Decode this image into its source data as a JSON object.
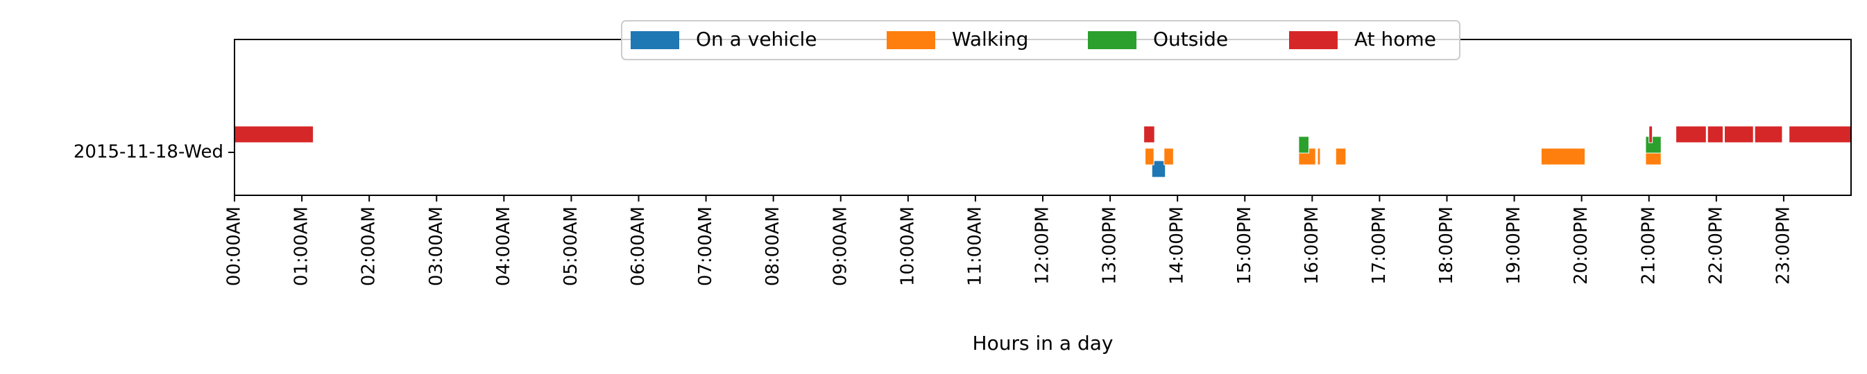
{
  "chart_data": {
    "type": "timeline",
    "xlabel": "Hours in a day",
    "x_tick_labels": [
      "00:00AM",
      "01:00AM",
      "02:00AM",
      "03:00AM",
      "04:00AM",
      "05:00AM",
      "06:00AM",
      "07:00AM",
      "08:00AM",
      "09:00AM",
      "10:00AM",
      "11:00AM",
      "12:00PM",
      "13:00PM",
      "14:00PM",
      "15:00PM",
      "16:00PM",
      "17:00PM",
      "18:00PM",
      "19:00PM",
      "20:00PM",
      "21:00PM",
      "22:00PM",
      "23:00PM"
    ],
    "xlim": [
      0,
      24
    ],
    "row_label": "2015-11-18-Wed",
    "legend_position": "upper center",
    "series": [
      {
        "name": "On a vehicle",
        "color": "#1f77b4",
        "lane": 3,
        "intervals": [
          [
            13.62,
            13.82
          ]
        ]
      },
      {
        "name": "Walking",
        "color": "#ff7f0e",
        "lane": 2,
        "intervals": [
          [
            13.52,
            13.65
          ],
          [
            13.8,
            13.94
          ],
          [
            15.8,
            16.05
          ],
          [
            16.08,
            16.12
          ],
          [
            16.35,
            16.5
          ],
          [
            19.4,
            20.05
          ],
          [
            20.95,
            21.18
          ]
        ]
      },
      {
        "name": "Outside",
        "color": "#2ca02c",
        "lane": 1,
        "intervals": [
          [
            15.8,
            15.95
          ],
          [
            20.95,
            21.18
          ]
        ]
      },
      {
        "name": "At home",
        "color": "#d62728",
        "lane": 0,
        "intervals": [
          [
            0.0,
            1.17
          ],
          [
            13.5,
            13.66
          ],
          [
            21.0,
            21.05
          ],
          [
            21.4,
            21.85
          ],
          [
            21.87,
            22.1
          ],
          [
            22.12,
            22.55
          ],
          [
            22.57,
            22.98
          ],
          [
            23.08,
            24.0
          ]
        ]
      }
    ]
  }
}
